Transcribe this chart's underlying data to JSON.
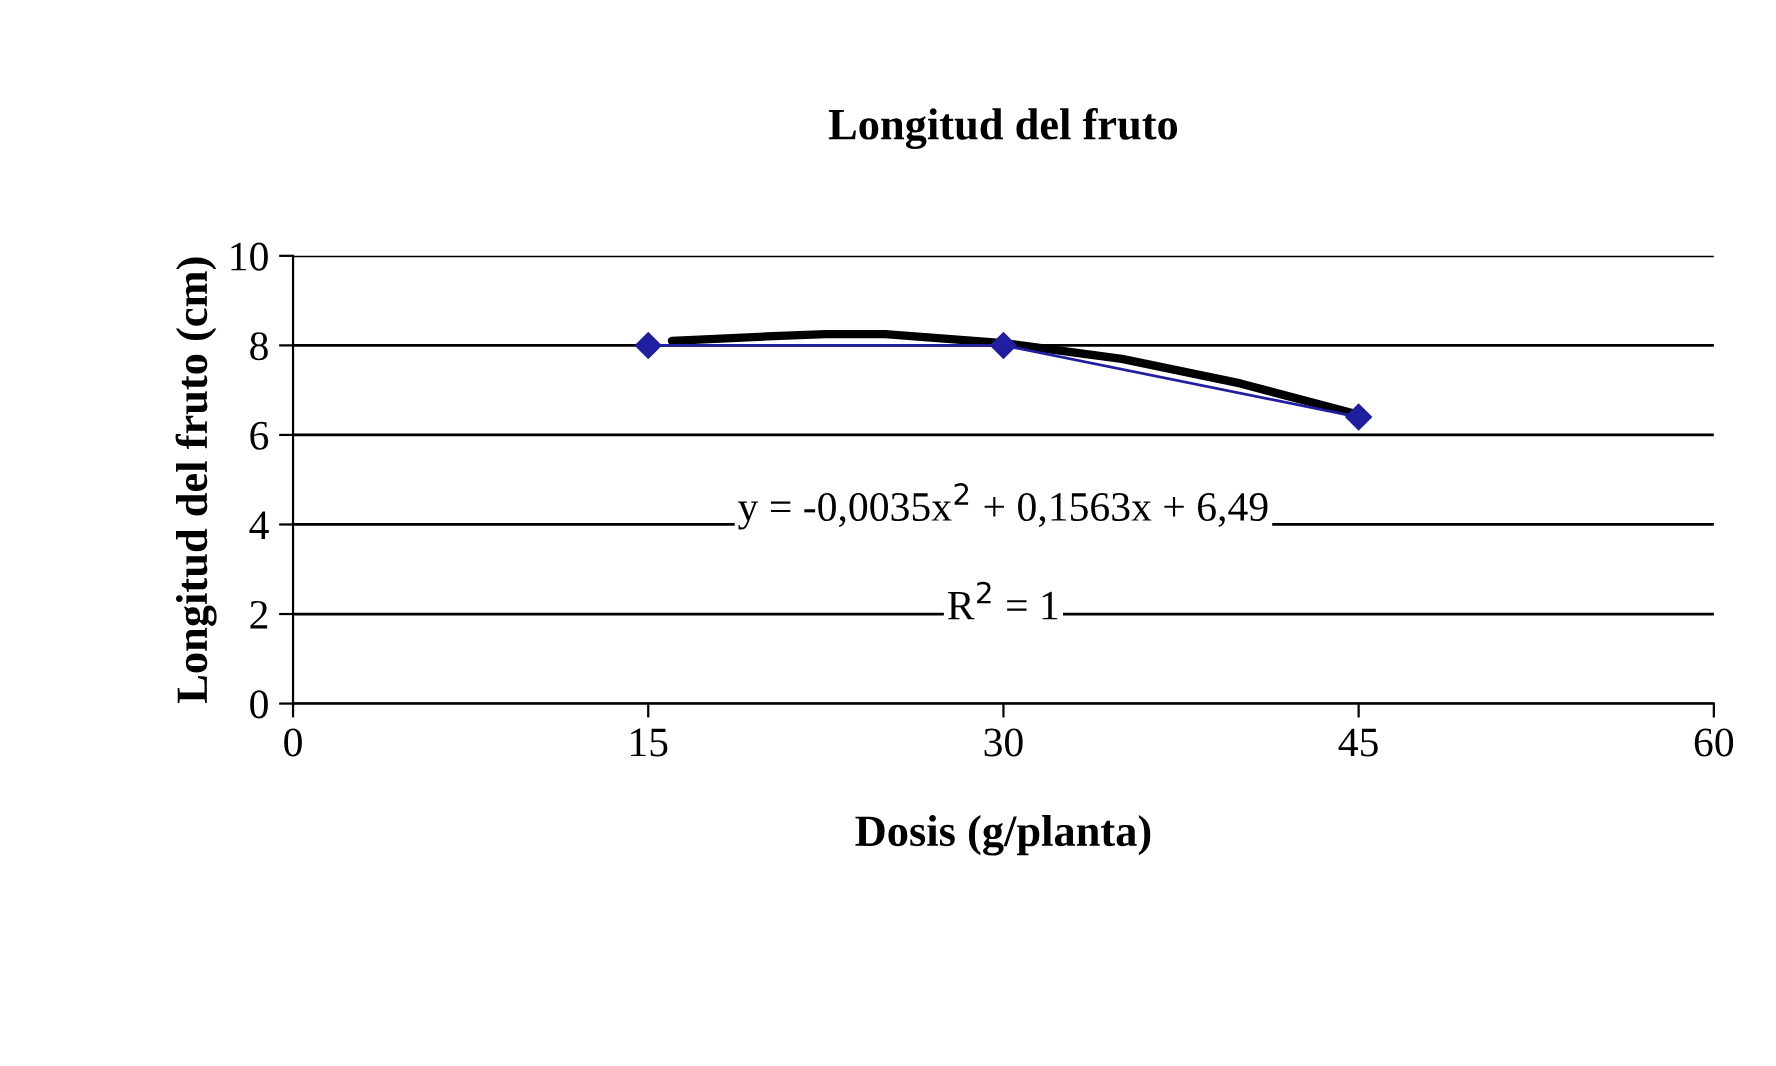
{
  "chart_data": {
    "type": "line",
    "title": "Longitud del fruto",
    "xlabel": "Dosis (g/planta)",
    "ylabel": "Longitud del fruto (cm)",
    "series": [
      {
        "color": "#1f1fa0",
        "x": [
          15,
          30,
          45
        ],
        "values": [
          8.0,
          8.0,
          6.4
        ],
        "marker": "diamond",
        "line_style": "solid"
      },
      {
        "type": "line",
        "color": "#000000",
        "x": [
          16,
          20,
          22.5,
          25,
          30,
          35,
          40,
          45
        ],
        "values": [
          8.1,
          8.2,
          8.25,
          8.25,
          8.05,
          7.7,
          7.15,
          6.45
        ],
        "marker": "none",
        "line_style": "solid"
      }
    ],
    "xlim": [
      0,
      60
    ],
    "xticks": [
      0,
      15,
      30,
      45,
      60
    ],
    "ylim": [
      0,
      10
    ],
    "yticks": [
      0,
      2,
      4,
      6,
      8,
      10
    ],
    "grid": "y",
    "legend": false,
    "annotations": [
      "y = -0,0035x$^{2}$ + 0,1563x + 6,49",
      "R$^{2}$ = 1"
    ]
  }
}
